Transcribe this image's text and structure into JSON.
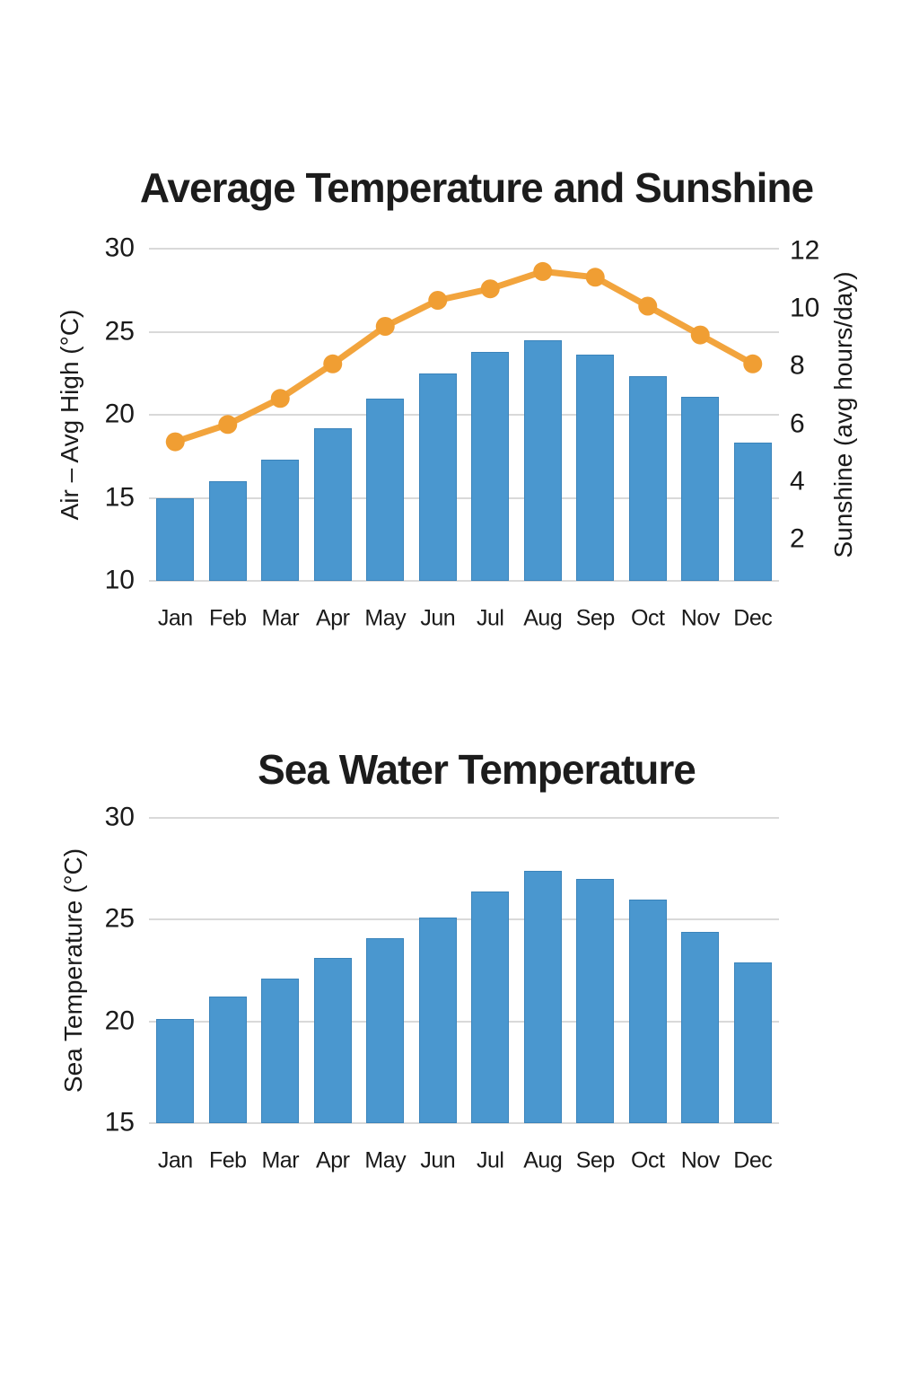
{
  "page": {
    "colors": {
      "background": "#FFFFFF",
      "text": "#1A1A1A",
      "grid": "#D9D9D9"
    }
  },
  "chart_data": [
    {
      "type": "bar",
      "title": "Average Temperature and Sunshine",
      "categories": [
        "Jan",
        "Feb",
        "Mar",
        "Apr",
        "May",
        "Jun",
        "Jul",
        "Aug",
        "Sep",
        "Oct",
        "Nov",
        "Dec"
      ],
      "series": [
        {
          "name": "Air – Avg High (°C)",
          "kind": "bar",
          "axis": "left",
          "color": "#4A97CF",
          "border_color": "#3B84BB",
          "values": [
            15.0,
            16.0,
            17.3,
            19.2,
            21.0,
            22.5,
            23.8,
            24.5,
            23.6,
            22.3,
            21.1,
            18.3
          ]
        },
        {
          "name": "Sunshine (avg hours/day)",
          "kind": "line",
          "axis": "right",
          "color": "#F2A43D",
          "marker_color": "#F09E33",
          "values": [
            5.4,
            6.0,
            6.9,
            8.1,
            9.4,
            10.3,
            10.7,
            11.3,
            11.1,
            10.1,
            9.1,
            8.1
          ]
        }
      ],
      "left_axis": {
        "label": "Air – Avg High (°C)",
        "min": 10,
        "max": 30,
        "ticks": [
          30,
          25,
          20,
          15,
          10
        ]
      },
      "right_axis": {
        "label": "Sunshine (avg hours/day)",
        "min": 0.58,
        "max": 12.09,
        "ticks": [
          12,
          10,
          8,
          6,
          4,
          2
        ]
      },
      "grid": true,
      "legend": "none"
    },
    {
      "type": "bar",
      "title": "Sea Water Temperature",
      "categories": [
        "Jan",
        "Feb",
        "Mar",
        "Apr",
        "May",
        "Jun",
        "Jul",
        "Aug",
        "Sep",
        "Oct",
        "Nov",
        "Dec"
      ],
      "series": [
        {
          "name": "Sea Temperature (°C)",
          "kind": "bar",
          "axis": "left",
          "color": "#4A97CF",
          "border_color": "#3B84BB",
          "values": [
            20.1,
            21.2,
            22.1,
            23.1,
            24.1,
            25.1,
            26.4,
            27.4,
            27.0,
            26.0,
            24.4,
            22.9
          ]
        }
      ],
      "left_axis": {
        "label": "Sea Temperature (°C)",
        "min": 15,
        "max": 30,
        "ticks": [
          30,
          25,
          20,
          15
        ]
      },
      "grid": true,
      "legend": "none"
    }
  ]
}
